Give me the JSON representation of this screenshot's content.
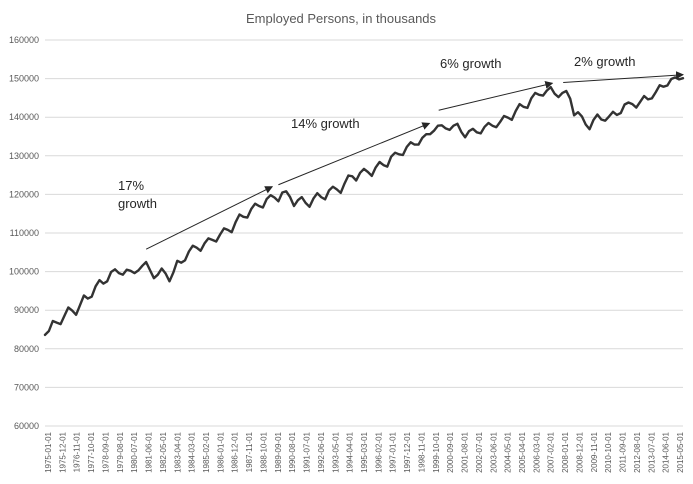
{
  "chart_data": {
    "type": "line",
    "title": "Employed Persons, in thousands",
    "xlabel": "",
    "ylabel": "",
    "ylim": [
      60000,
      160000
    ],
    "y_ticks": [
      60000,
      70000,
      80000,
      90000,
      100000,
      110000,
      120000,
      130000,
      140000,
      150000,
      160000
    ],
    "x_tick_labels": [
      "1975-01-01",
      "1975-12-01",
      "1976-11-01",
      "1977-10-01",
      "1978-09-01",
      "1979-08-01",
      "1980-07-01",
      "1981-06-01",
      "1982-05-01",
      "1983-04-01",
      "1984-03-01",
      "1985-02-01",
      "1986-01-01",
      "1986-12-01",
      "1987-11-01",
      "1988-10-01",
      "1989-09-01",
      "1990-08-01",
      "1991-07-01",
      "1992-06-01",
      "1993-05-01",
      "1994-04-01",
      "1995-03-01",
      "1996-02-01",
      "1997-01-01",
      "1997-12-01",
      "1998-11-01",
      "1999-10-01",
      "2000-09-01",
      "2001-08-01",
      "2002-07-01",
      "2003-06-01",
      "2004-05-01",
      "2005-04-01",
      "2006-03-01",
      "2007-02-01",
      "2008-01-01",
      "2008-12-01",
      "2009-11-01",
      "2010-10-01",
      "2011-09-01",
      "2012-08-01",
      "2013-07-01",
      "2014-06-01",
      "2015-05-01"
    ],
    "grid": "horizontal",
    "legend": "none",
    "line_color": "#333333",
    "series": [
      {
        "x": [
          1975.0,
          1975.25,
          1975.5,
          1975.75,
          1976.0,
          1976.25,
          1976.5,
          1976.75,
          1977.0,
          1977.25,
          1977.5,
          1977.75,
          1978.0,
          1978.25,
          1978.5,
          1978.75,
          1979.0,
          1979.25,
          1979.5,
          1979.75,
          1980.0,
          1980.25,
          1980.5,
          1980.75,
          1981.0,
          1981.25,
          1981.5,
          1981.75,
          1982.0,
          1982.25,
          1982.5,
          1982.75,
          1983.0,
          1983.25,
          1983.5,
          1983.75,
          1984.0,
          1984.25,
          1984.5,
          1984.75,
          1985.0,
          1985.25,
          1985.5,
          1985.75,
          1986.0,
          1986.25,
          1986.5,
          1986.75,
          1987.0,
          1987.25,
          1987.5,
          1987.75,
          1988.0,
          1988.25,
          1988.5,
          1988.75,
          1989.0,
          1989.25,
          1989.5,
          1989.75,
          1990.0,
          1990.25,
          1990.5,
          1990.75,
          1991.0,
          1991.25,
          1991.5,
          1991.75,
          1992.0,
          1992.25,
          1992.5,
          1992.75,
          1993.0,
          1993.25,
          1993.5,
          1993.75,
          1994.0,
          1994.25,
          1994.5,
          1994.75,
          1995.0,
          1995.25,
          1995.5,
          1995.75,
          1996.0,
          1996.25,
          1996.5,
          1996.75,
          1997.0,
          1997.25,
          1997.5,
          1997.75,
          1998.0,
          1998.25,
          1998.5,
          1998.75,
          1999.0,
          1999.25,
          1999.5,
          1999.75,
          2000.0,
          2000.25,
          2000.5,
          2000.75,
          2001.0,
          2001.25,
          2001.5,
          2001.75,
          2002.0,
          2002.25,
          2002.5,
          2002.75,
          2003.0,
          2003.25,
          2003.5,
          2003.75,
          2004.0,
          2004.25,
          2004.5,
          2004.75,
          2005.0,
          2005.25,
          2005.5,
          2005.75,
          2006.0,
          2006.25,
          2006.5,
          2006.75,
          2007.0,
          2007.25,
          2007.5,
          2007.75,
          2008.0,
          2008.25,
          2008.5,
          2008.75,
          2009.0,
          2009.25,
          2009.5,
          2009.75,
          2010.0,
          2010.25,
          2010.5,
          2010.75,
          2011.0,
          2011.25,
          2011.5,
          2011.75,
          2012.0,
          2012.25,
          2012.5,
          2012.75,
          2013.0,
          2013.25,
          2013.5,
          2013.75,
          2014.0,
          2014.25,
          2014.5,
          2014.75,
          2015.0,
          2015.25,
          2015.5,
          2015.75,
          2016.0
        ],
        "values": [
          83600,
          84600,
          87200,
          86800,
          86400,
          88600,
          90700,
          89900,
          88800,
          91300,
          93800,
          93000,
          93500,
          96200,
          97800,
          96900,
          97500,
          99900,
          100600,
          99600,
          99200,
          100500,
          100200,
          99600,
          100300,
          101500,
          102500,
          100400,
          98300,
          99200,
          100800,
          99500,
          97500,
          99800,
          102800,
          102300,
          102900,
          105200,
          106700,
          106200,
          105400,
          107300,
          108600,
          108200,
          107800,
          109600,
          111200,
          110800,
          110200,
          112800,
          114800,
          114200,
          114000,
          116200,
          117600,
          117000,
          116600,
          118800,
          119800,
          119200,
          118200,
          120500,
          120800,
          119300,
          117000,
          118500,
          119300,
          117800,
          116800,
          118900,
          120300,
          119300,
          118700,
          121000,
          122000,
          121300,
          120400,
          122800,
          124900,
          124700,
          123600,
          125600,
          126600,
          125800,
          124800,
          127000,
          128400,
          127600,
          127200,
          129800,
          130800,
          130400,
          130200,
          132300,
          133500,
          132900,
          132900,
          134700,
          135600,
          135600,
          136500,
          137800,
          137900,
          137100,
          136700,
          137800,
          138300,
          136200,
          134800,
          136400,
          137000,
          136100,
          135800,
          137500,
          138500,
          137800,
          137400,
          138800,
          140300,
          139900,
          139300,
          141600,
          143400,
          142700,
          142400,
          144900,
          146300,
          145800,
          145600,
          146900,
          147800,
          146100,
          145200,
          146300,
          146800,
          144800,
          140500,
          141300,
          140200,
          138100,
          136900,
          139300,
          140700,
          139400,
          139100,
          140200,
          141400,
          140600,
          141100,
          143300,
          143800,
          143400,
          142500,
          144000,
          145500,
          144600,
          144900,
          146500,
          148300,
          147900,
          148200,
          149900,
          150300,
          149800,
          150100
        ]
      }
    ],
    "annotations": [
      {
        "text_lines": [
          "17%",
          "growth"
        ],
        "from": [
          1981.5,
          105800
        ],
        "to": [
          1989.6,
          122000
        ]
      },
      {
        "text_lines": [
          "14% growth"
        ],
        "from": [
          1990.0,
          122500
        ],
        "to": [
          1999.7,
          138400
        ]
      },
      {
        "text_lines": [
          "6% growth"
        ],
        "from": [
          2000.3,
          141800
        ],
        "to": [
          2007.6,
          148800
        ]
      },
      {
        "text_lines": [
          "2% growth"
        ],
        "from": [
          2008.3,
          149000
        ],
        "to": [
          2016.0,
          151000
        ]
      }
    ]
  }
}
